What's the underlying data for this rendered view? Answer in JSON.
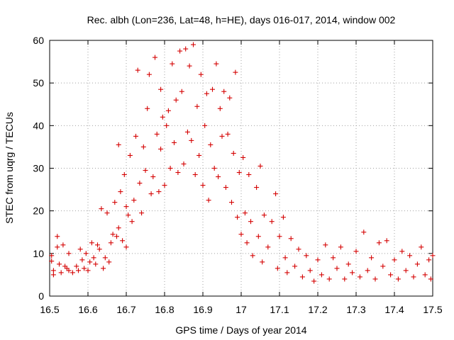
{
  "chart_data": {
    "type": "scatter",
    "title": "Rec. albh (Lon=236, Lat=48, h=HE), days 016-017, 2014, window 002",
    "xlabel": "GPS time / Days of year 2014",
    "ylabel": "STEC from uqrg / TECUs",
    "xlim": [
      16.5,
      17.5
    ],
    "ylim": [
      0,
      60
    ],
    "xticks": [
      16.5,
      16.6,
      16.7,
      16.8,
      16.9,
      17,
      17.1,
      17.2,
      17.3,
      17.4,
      17.5
    ],
    "xtick_labels": [
      "16.5",
      "16.6",
      "16.7",
      "16.8",
      "16.9",
      "17",
      "17.1",
      "17.2",
      "17.3",
      "17.4",
      "17.5"
    ],
    "yticks": [
      0,
      10,
      20,
      30,
      40,
      50,
      60
    ],
    "ytick_labels": [
      "0",
      "10",
      "20",
      "30",
      "40",
      "50",
      "60"
    ],
    "grid": true,
    "marker": "+",
    "color": "#d40000",
    "series": [
      {
        "name": "STEC",
        "points": [
          [
            16.505,
            9.5
          ],
          [
            16.505,
            8.2
          ],
          [
            16.51,
            6.0
          ],
          [
            16.51,
            5.0
          ],
          [
            16.52,
            14.0
          ],
          [
            16.52,
            11.5
          ],
          [
            16.525,
            7.5
          ],
          [
            16.53,
            5.5
          ],
          [
            16.535,
            12.0
          ],
          [
            16.54,
            7.0
          ],
          [
            16.545,
            6.5
          ],
          [
            16.55,
            10.0
          ],
          [
            16.55,
            6.0
          ],
          [
            16.56,
            5.5
          ],
          [
            16.57,
            7.0
          ],
          [
            16.575,
            6.0
          ],
          [
            16.58,
            11.0
          ],
          [
            16.585,
            8.5
          ],
          [
            16.59,
            6.5
          ],
          [
            16.595,
            10.0
          ],
          [
            16.6,
            6.0
          ],
          [
            16.605,
            8.0
          ],
          [
            16.61,
            12.5
          ],
          [
            16.615,
            9.0
          ],
          [
            16.62,
            7.5
          ],
          [
            16.625,
            12.0
          ],
          [
            16.63,
            11.0
          ],
          [
            16.635,
            20.5
          ],
          [
            16.64,
            6.5
          ],
          [
            16.645,
            9.0
          ],
          [
            16.65,
            19.5
          ],
          [
            16.655,
            8.0
          ],
          [
            16.66,
            12.5
          ],
          [
            16.665,
            14.5
          ],
          [
            16.67,
            22.0
          ],
          [
            16.675,
            14.0
          ],
          [
            16.68,
            16.0
          ],
          [
            16.68,
            35.5
          ],
          [
            16.685,
            24.5
          ],
          [
            16.69,
            13.0
          ],
          [
            16.695,
            28.5
          ],
          [
            16.7,
            11.5
          ],
          [
            16.7,
            21.0
          ],
          [
            16.705,
            19.0
          ],
          [
            16.71,
            33.0
          ],
          [
            16.715,
            17.5
          ],
          [
            16.72,
            22.5
          ],
          [
            16.725,
            37.5
          ],
          [
            16.73,
            53.0
          ],
          [
            16.735,
            26.5
          ],
          [
            16.74,
            19.5
          ],
          [
            16.745,
            35.0
          ],
          [
            16.75,
            29.5
          ],
          [
            16.755,
            44.0
          ],
          [
            16.76,
            52.0
          ],
          [
            16.765,
            24.0
          ],
          [
            16.77,
            28.0
          ],
          [
            16.775,
            56.0
          ],
          [
            16.78,
            38.0
          ],
          [
            16.785,
            24.5
          ],
          [
            16.79,
            34.5
          ],
          [
            16.79,
            48.5
          ],
          [
            16.795,
            42.0
          ],
          [
            16.8,
            26.0
          ],
          [
            16.805,
            40.0
          ],
          [
            16.81,
            43.5
          ],
          [
            16.815,
            30.0
          ],
          [
            16.82,
            54.5
          ],
          [
            16.825,
            36.0
          ],
          [
            16.83,
            46.0
          ],
          [
            16.835,
            29.0
          ],
          [
            16.84,
            57.5
          ],
          [
            16.845,
            48.0
          ],
          [
            16.85,
            31.0
          ],
          [
            16.855,
            58.0
          ],
          [
            16.86,
            38.5
          ],
          [
            16.865,
            54.0
          ],
          [
            16.87,
            36.5
          ],
          [
            16.875,
            59.0
          ],
          [
            16.88,
            28.5
          ],
          [
            16.885,
            44.5
          ],
          [
            16.89,
            33.0
          ],
          [
            16.895,
            52.0
          ],
          [
            16.9,
            26.0
          ],
          [
            16.905,
            40.0
          ],
          [
            16.91,
            47.5
          ],
          [
            16.915,
            22.5
          ],
          [
            16.92,
            35.5
          ],
          [
            16.925,
            48.5
          ],
          [
            16.93,
            30.0
          ],
          [
            16.935,
            54.5
          ],
          [
            16.94,
            28.0
          ],
          [
            16.945,
            44.0
          ],
          [
            16.95,
            37.5
          ],
          [
            16.955,
            48.0
          ],
          [
            16.96,
            25.5
          ],
          [
            16.965,
            38.0
          ],
          [
            16.97,
            46.5
          ],
          [
            16.975,
            22.0
          ],
          [
            16.98,
            33.5
          ],
          [
            16.985,
            52.5
          ],
          [
            16.99,
            18.5
          ],
          [
            16.995,
            29.0
          ],
          [
            17.0,
            14.5
          ],
          [
            17.005,
            32.5
          ],
          [
            17.01,
            19.5
          ],
          [
            17.015,
            12.5
          ],
          [
            17.02,
            28.5
          ],
          [
            17.025,
            17.5
          ],
          [
            17.03,
            9.5
          ],
          [
            17.04,
            25.5
          ],
          [
            17.045,
            14.0
          ],
          [
            17.05,
            30.5
          ],
          [
            17.055,
            8.0
          ],
          [
            17.06,
            19.0
          ],
          [
            17.07,
            11.5
          ],
          [
            17.08,
            17.5
          ],
          [
            17.09,
            24.0
          ],
          [
            17.095,
            6.5
          ],
          [
            17.1,
            14.0
          ],
          [
            17.11,
            18.5
          ],
          [
            17.115,
            9.0
          ],
          [
            17.12,
            5.5
          ],
          [
            17.13,
            13.5
          ],
          [
            17.14,
            7.0
          ],
          [
            17.15,
            11.0
          ],
          [
            17.16,
            4.5
          ],
          [
            17.17,
            9.5
          ],
          [
            17.18,
            6.0
          ],
          [
            17.19,
            3.5
          ],
          [
            17.2,
            8.5
          ],
          [
            17.21,
            5.0
          ],
          [
            17.22,
            12.0
          ],
          [
            17.23,
            4.0
          ],
          [
            17.24,
            9.0
          ],
          [
            17.25,
            6.5
          ],
          [
            17.26,
            11.5
          ],
          [
            17.27,
            4.0
          ],
          [
            17.28,
            7.5
          ],
          [
            17.29,
            5.5
          ],
          [
            17.3,
            10.5
          ],
          [
            17.31,
            4.5
          ],
          [
            17.32,
            15.0
          ],
          [
            17.33,
            6.0
          ],
          [
            17.34,
            9.0
          ],
          [
            17.35,
            4.0
          ],
          [
            17.36,
            12.5
          ],
          [
            17.37,
            7.0
          ],
          [
            17.38,
            13.0
          ],
          [
            17.39,
            5.0
          ],
          [
            17.4,
            8.5
          ],
          [
            17.41,
            4.0
          ],
          [
            17.42,
            10.5
          ],
          [
            17.43,
            6.0
          ],
          [
            17.44,
            9.5
          ],
          [
            17.45,
            4.5
          ],
          [
            17.46,
            7.5
          ],
          [
            17.47,
            11.5
          ],
          [
            17.48,
            5.0
          ],
          [
            17.49,
            8.5
          ],
          [
            17.495,
            4.0
          ],
          [
            17.5,
            9.5
          ]
        ]
      }
    ]
  }
}
